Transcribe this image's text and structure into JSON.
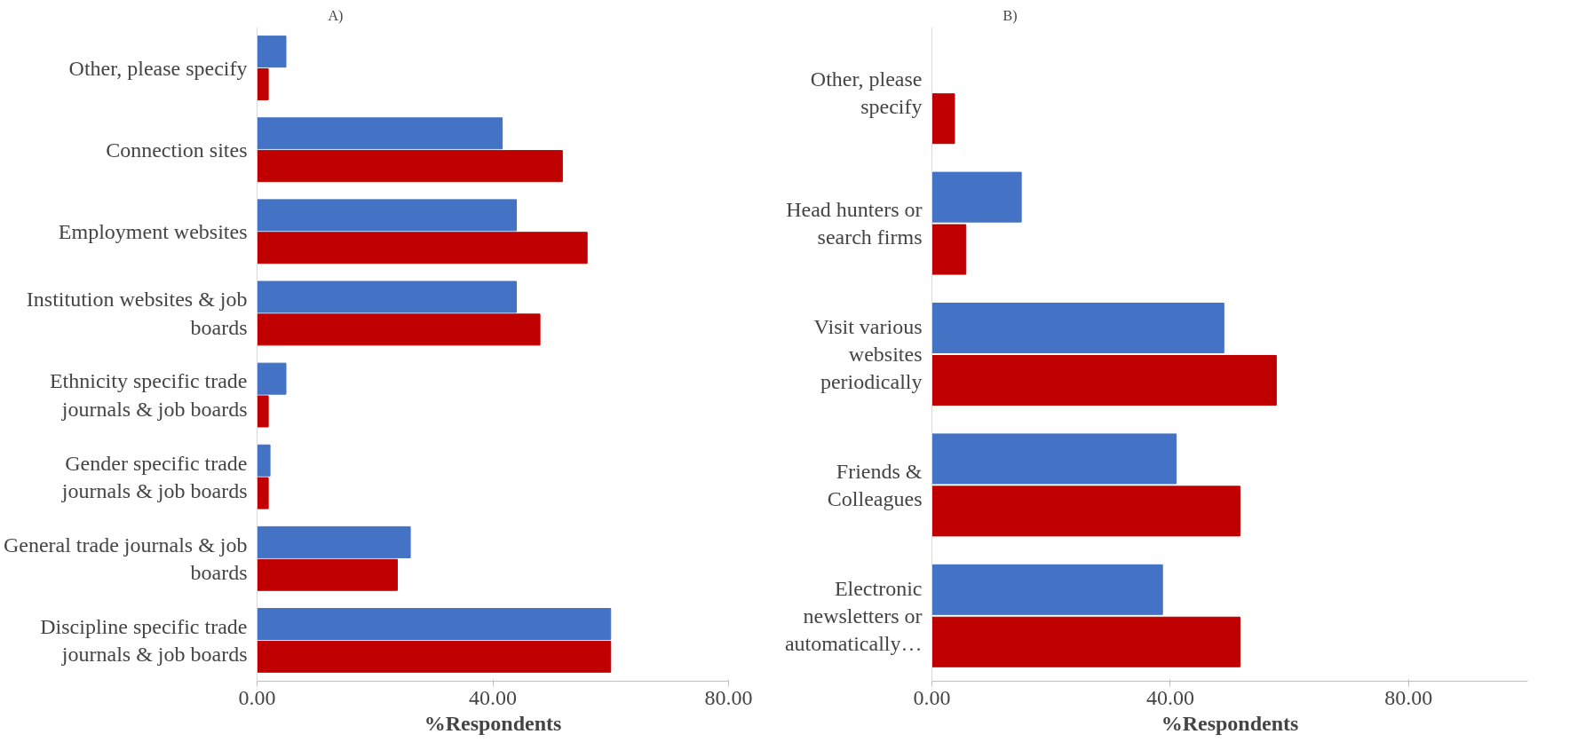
{
  "chart_data": [
    {
      "type": "bar",
      "orientation": "horizontal",
      "title": "A)",
      "xlabel": "%Respondents",
      "categories": [
        "Other, please specify",
        "Connection sites",
        "Employment websites",
        "Institution websites & job boards",
        "Ethnicity specific trade journals & job boards",
        "Gender specific trade journals & job boards",
        "General trade journals & job boards",
        "Discipline specific trade journals & job boards"
      ],
      "series": [
        {
          "color": "#4472c4",
          "values": [
            4.9,
            41.6,
            44,
            44,
            4.9,
            2.2,
            26,
            60
          ]
        },
        {
          "color": "#c00000",
          "values": [
            1.9,
            51.8,
            56,
            48,
            1.9,
            1.9,
            23.8,
            60
          ]
        }
      ],
      "xlim": [
        0,
        80
      ],
      "xticks": [
        {
          "value": 0,
          "label": "0.00"
        },
        {
          "value": 40,
          "label": "40.00"
        },
        {
          "value": 80,
          "label": "80.00"
        }
      ],
      "grid": false
    },
    {
      "type": "bar",
      "orientation": "horizontal",
      "title": "B)",
      "xlabel": "%Respondents",
      "categories": [
        "Other, please specify",
        "Head hunters or search firms",
        "Visit various websites periodically",
        "Friends & Colleagues",
        "Electronic newsletters or automatically…"
      ],
      "series": [
        {
          "color": "#4472c4",
          "values": [
            null,
            15,
            49,
            41,
            38.7
          ]
        },
        {
          "color": "#c00000",
          "values": [
            3.8,
            5.7,
            57.8,
            51.7,
            51.7
          ]
        }
      ],
      "xlim": [
        0,
        100
      ],
      "xticks": [
        {
          "value": 0,
          "label": "0.00"
        },
        {
          "value": 40,
          "label": "40.00"
        },
        {
          "value": 80,
          "label": "80.00"
        }
      ],
      "grid": false
    }
  ]
}
